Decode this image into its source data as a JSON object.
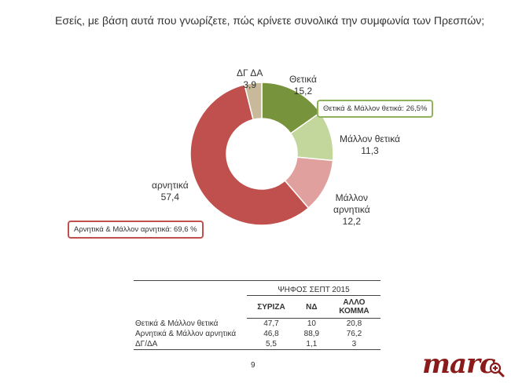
{
  "title": "Εσείς, με βάση αυτά που γνωρίζετε, πώς κρίνετε συνολικά την συμφωνία των Πρεσπών;",
  "chart_data": {
    "type": "pie",
    "variant": "donut",
    "slices": [
      {
        "name": "Θετικά",
        "value": 15.2,
        "color": "#77933c"
      },
      {
        "name": "Μάλλον θετικά",
        "value": 11.3,
        "color": "#c3d69b"
      },
      {
        "name": "Μάλλον αρνητικά",
        "value": 12.2,
        "color": "#e0a09e"
      },
      {
        "name": "αρνητικά",
        "value": 57.4,
        "color": "#c0504d"
      },
      {
        "name": "ΔΓ ΔΑ",
        "value": 3.9,
        "color": "#c8b99a"
      }
    ],
    "labels": {
      "thetika": {
        "name": "Θετικά",
        "value": "15,2"
      },
      "mallon_thetika": {
        "name": "Μάλλον θετικά",
        "value": "11,3"
      },
      "mallon_arnitika": {
        "name1": "Μάλλον",
        "name2": "αρνητικά",
        "value": "12,2"
      },
      "arnitika": {
        "name": "αρνητικά",
        "value": "57,4"
      },
      "dg_da": {
        "name": "ΔΓ ΔΑ",
        "value": "3,9"
      }
    },
    "callouts": {
      "positive": "Θετικά & Μάλλον θετικά: 26,5%",
      "negative": "Αρνητικά & Μάλλον αρνητικά: 69,6 %"
    }
  },
  "table": {
    "group_header": "ΨΗΦΟΣ ΣΕΠΤ 2015",
    "columns": [
      "ΣΥΡΙΖΑ",
      "ΝΔ",
      "ΑΛΛΟ ΚΟΜΜΑ"
    ],
    "rows": [
      {
        "label": "Θετικά & Μάλλον θετικά",
        "values": [
          "47,7",
          "10",
          "20,8"
        ]
      },
      {
        "label": "Αρνητικά & Μάλλον αρνητικά",
        "values": [
          "46,8",
          "88,9",
          "76,2"
        ]
      },
      {
        "label": "ΔΓ/ΔΑ",
        "values": [
          "5,5",
          "1,1",
          "3"
        ]
      }
    ]
  },
  "page_number": "9",
  "logo_text": "marc",
  "zoom_icon": "zoom-in-icon"
}
